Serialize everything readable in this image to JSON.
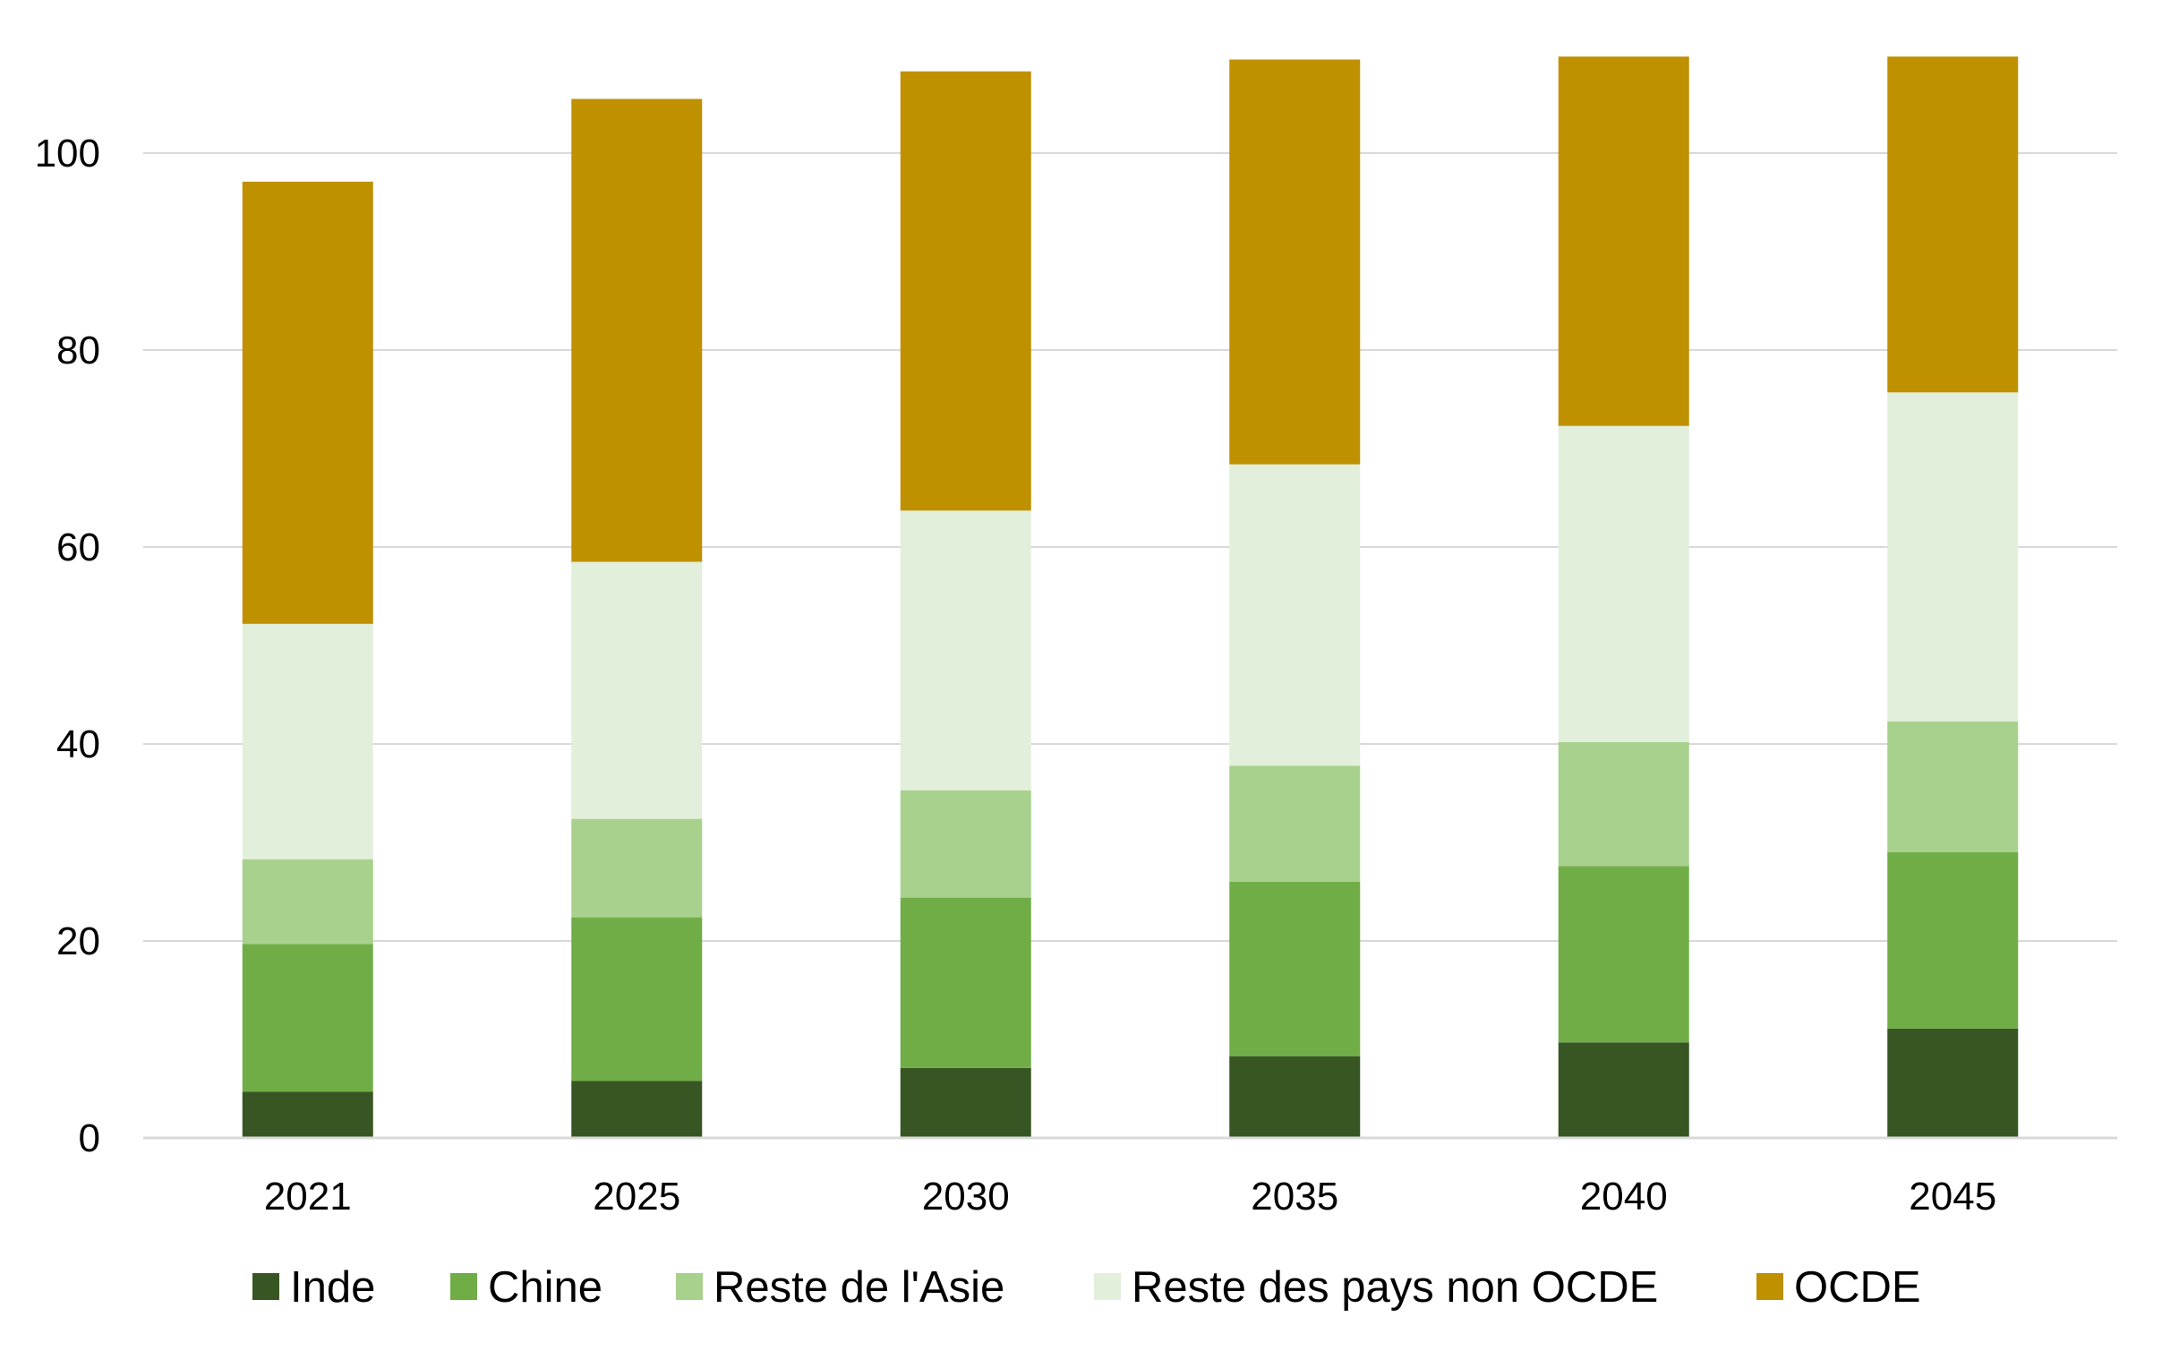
{
  "chart_data": {
    "type": "bar",
    "stacked": true,
    "title": "",
    "xlabel": "",
    "ylabel": "",
    "ylim": [
      0,
      110
    ],
    "y_ticks": [
      0,
      20,
      40,
      60,
      80,
      100
    ],
    "grid": "horizontal",
    "legend_position": "bottom",
    "categories": [
      "2021",
      "2025",
      "2030",
      "2035",
      "2040",
      "2045"
    ],
    "series": [
      {
        "name": "Inde",
        "color": "#375623",
        "values": [
          4.7,
          5.8,
          7.1,
          8.3,
          9.7,
          11.1
        ]
      },
      {
        "name": "Chine",
        "color": "#70AD47",
        "values": [
          15.0,
          16.6,
          17.3,
          17.7,
          17.9,
          17.9
        ]
      },
      {
        "name": "Reste de l'Asie",
        "color": "#A9D18E",
        "values": [
          8.6,
          10.0,
          10.9,
          11.8,
          12.6,
          13.3
        ]
      },
      {
        "name": "Reste des pays non OCDE",
        "color": "#E2EFDA",
        "values": [
          23.9,
          26.1,
          28.4,
          30.6,
          32.1,
          33.4
        ]
      },
      {
        "name": "OCDE",
        "color": "#BF9000",
        "values": [
          44.9,
          47.0,
          44.6,
          41.1,
          37.5,
          34.1
        ]
      }
    ]
  }
}
